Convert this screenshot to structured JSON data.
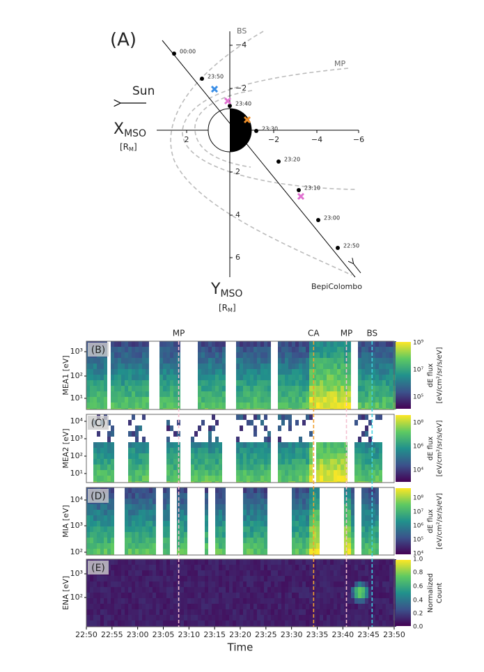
{
  "panel_a": {
    "label": "(A)",
    "sun": "Sun",
    "x_axis": {
      "symbol": "X",
      "subscript": "MSO",
      "unit": "[R",
      "unit_subscript": "M",
      "unit_close": "]",
      "ticks": [
        "2",
        "−2",
        "−4",
        "−6"
      ]
    },
    "y_axis": {
      "symbol": "Y",
      "subscript": "MSO",
      "unit": "[R",
      "unit_subscript": "M",
      "unit_close": "]",
      "ticks": [
        "−4",
        "−2",
        "2",
        "4",
        "6"
      ]
    },
    "boundaries": [
      "BS",
      "MP"
    ],
    "spacecraft": "BepiColombo",
    "times": [
      "00:00",
      "23:50",
      "23:40",
      "23:30",
      "23:20",
      "23:10",
      "23:00",
      "22:50"
    ]
  },
  "panels": [
    {
      "label": "(B)",
      "y_label": "MEA1 [eV]",
      "y_ticks": [
        "10³",
        "10²",
        "10¹"
      ],
      "colorbar_ticks": [
        "10⁹",
        "10⁷",
        "10⁵"
      ],
      "colorbar_label": [
        "dE flux",
        "[eV/cm²/sr/s/eV]"
      ]
    },
    {
      "label": "(C)",
      "y_label": "MEA2 [eV]",
      "y_ticks": [
        "10⁴",
        "10³",
        "10²",
        "10¹"
      ],
      "colorbar_ticks": [
        "10⁸",
        "10⁶",
        "10⁴"
      ],
      "colorbar_label": [
        "dE flux",
        "[eV/cm²/sr/s/eV]"
      ]
    },
    {
      "label": "(D)",
      "y_label": "MIA [eV]",
      "y_ticks": [
        "10⁴",
        "10³",
        "10²"
      ],
      "colorbar_ticks": [
        "10⁸",
        "10⁷",
        "10⁶",
        "10⁵",
        "10⁴"
      ],
      "colorbar_label": [
        "dE flux",
        "[eV/cm²/sr/s/eV]"
      ]
    },
    {
      "label": "(E)",
      "y_label": "ENA [eV]",
      "y_ticks": [
        "10³",
        "10²"
      ],
      "colorbar_ticks": [
        "1.0",
        "0.8",
        "0.6",
        "0.4",
        "0.2",
        "0.0"
      ],
      "colorbar_label": [
        "Normalized",
        "Count"
      ]
    }
  ],
  "events": [
    "MP",
    "CA",
    "MP",
    "BS"
  ],
  "time_axis": {
    "ticks": [
      "22:50",
      "22:55",
      "23:00",
      "23:05",
      "23:10",
      "23:15",
      "23:20",
      "23:25",
      "23:30",
      "23:35",
      "23:40",
      "23:45",
      "23:50"
    ],
    "label": "Time"
  }
}
